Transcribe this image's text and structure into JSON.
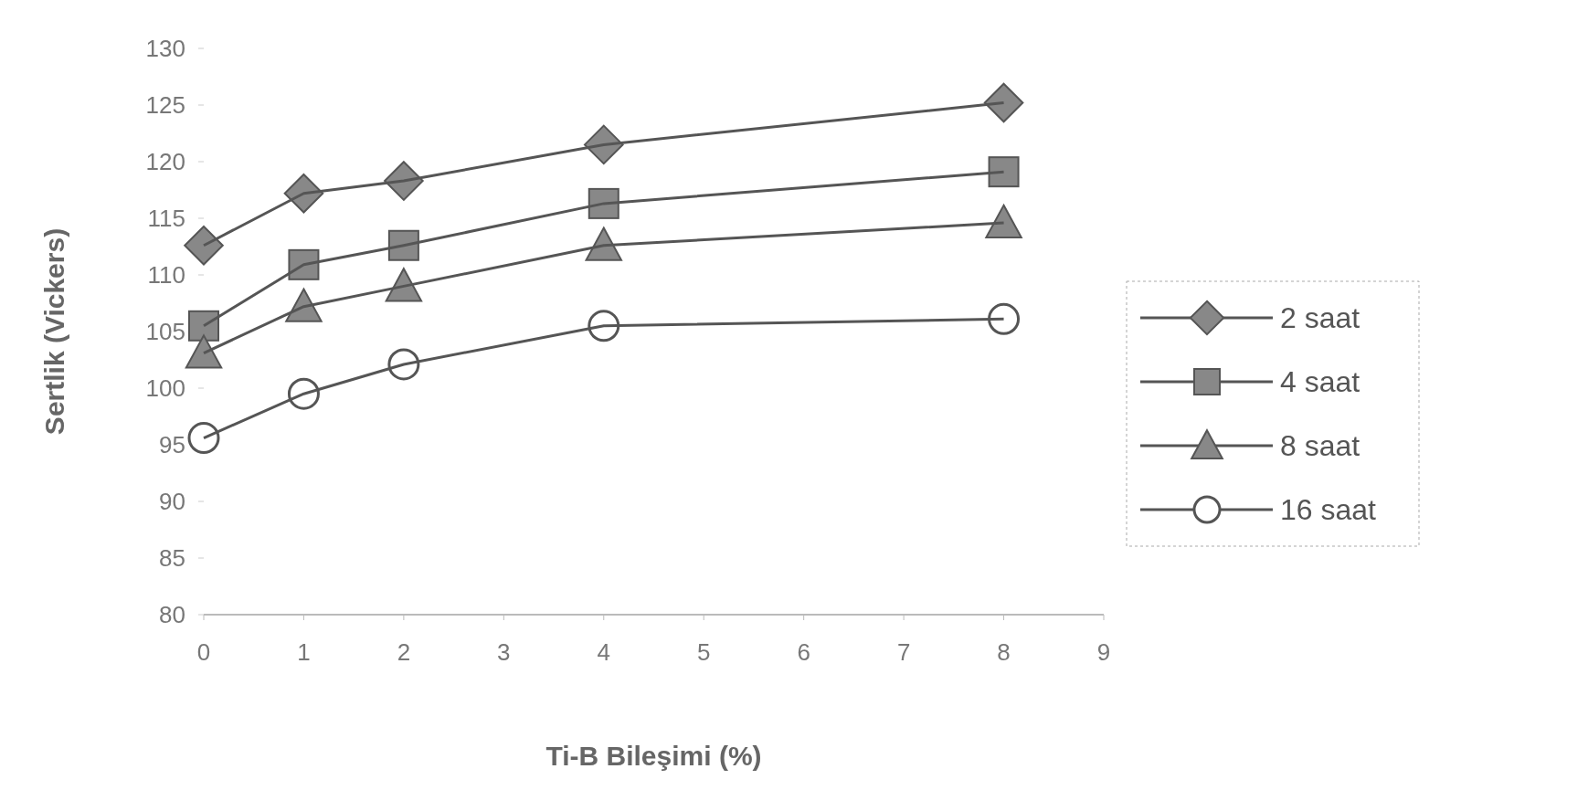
{
  "chart_data": {
    "type": "line",
    "xlabel": "Ti-B Bileşimi (%)",
    "ylabel": "Sertlik (Vickers)",
    "x": [
      0,
      1,
      2,
      4,
      8
    ],
    "series": [
      {
        "name": "2 saat",
        "color": "#555555",
        "marker": "diamond",
        "values": [
          112.6,
          117.2,
          118.3,
          121.5,
          125.2
        ]
      },
      {
        "name": "4 saat",
        "color": "#555555",
        "marker": "square",
        "values": [
          105.5,
          110.9,
          112.6,
          116.3,
          119.1
        ]
      },
      {
        "name": "8 saat",
        "color": "#555555",
        "marker": "triangle",
        "values": [
          103.1,
          107.2,
          109.0,
          112.6,
          114.6
        ]
      },
      {
        "name": "16 saat",
        "color": "#555555",
        "marker": "circle",
        "values": [
          95.6,
          99.5,
          102.1,
          105.5,
          106.1
        ]
      }
    ],
    "xlim": [
      0,
      9
    ],
    "xticks": [
      0,
      1,
      2,
      3,
      4,
      5,
      6,
      7,
      8,
      9
    ],
    "ylim": [
      80,
      130
    ],
    "yticks": [
      80,
      85,
      90,
      95,
      100,
      105,
      110,
      115,
      120,
      125,
      130
    ],
    "legend": "right"
  }
}
